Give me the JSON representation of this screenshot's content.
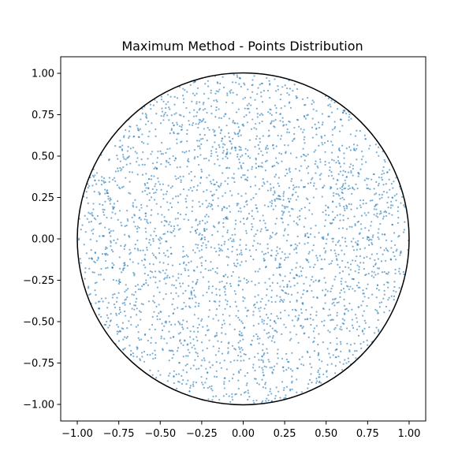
{
  "chart_data": {
    "type": "scatter",
    "title": "Maximum Method - Points Distribution",
    "xlabel": "",
    "ylabel": "",
    "xlim": [
      -1.1,
      1.1
    ],
    "ylim": [
      -1.1,
      1.1
    ],
    "xticks": [
      "−1.00",
      "−0.75",
      "−0.50",
      "−0.25",
      "0.00",
      "0.25",
      "0.50",
      "0.75",
      "1.00"
    ],
    "xtick_values": [
      -1.0,
      -0.75,
      -0.5,
      -0.25,
      0.0,
      0.25,
      0.5,
      0.75,
      1.0
    ],
    "yticks": [
      "−1.00",
      "−0.75",
      "−0.50",
      "−0.25",
      "0.00",
      "0.25",
      "0.50",
      "0.75",
      "1.00"
    ],
    "ytick_values": [
      -1.0,
      -0.75,
      -0.5,
      -0.25,
      0.0,
      0.25,
      0.5,
      0.75,
      1.0
    ],
    "grid": false,
    "point_count": 3000,
    "point_color": "#1f77b4",
    "point_opacity": 0.6,
    "distribution": "uniform in unit disk",
    "overlays": [
      {
        "type": "circle",
        "center": [
          0,
          0
        ],
        "radius": 1.0,
        "color": "#000000"
      }
    ]
  }
}
